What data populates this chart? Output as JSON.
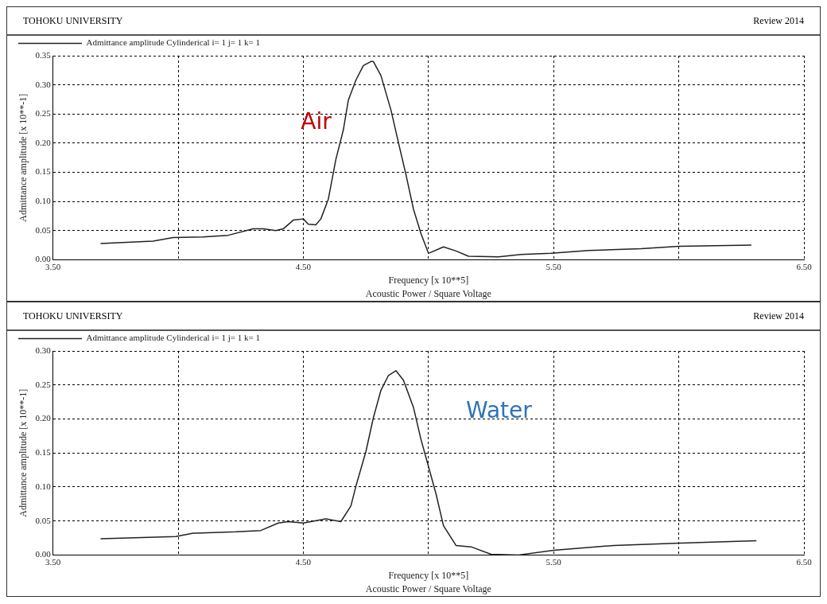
{
  "chart_data": [
    {
      "type": "line",
      "title": "TOHOKU UNIVERSITY",
      "subtitle": "Review 2014",
      "xlabel": "Frequency [x 10**5]",
      "ylabel": "Admittance amplitude [x 10**-1]",
      "annotations": [
        "Acoustic Power / Square Voltage",
        "Air"
      ],
      "legend": "top left",
      "grid": true,
      "xlim": [
        3.5,
        6.5
      ],
      "xticks": [
        {
          "value": 3.5,
          "label": "3.50"
        },
        {
          "value": 4.0,
          "label": null
        },
        {
          "value": 4.5,
          "label": "4.50"
        },
        {
          "value": 5.0,
          "label": null
        },
        {
          "value": 5.5,
          "label": "5.50"
        },
        {
          "value": 6.0,
          "label": null
        },
        {
          "value": 6.5,
          "label": "6.50"
        }
      ],
      "ylim": [
        0,
        0.35
      ],
      "yticks": [
        {
          "value": 0,
          "label": "0.00"
        },
        {
          "value": 0.05,
          "label": "0.05"
        },
        {
          "value": 0.1,
          "label": "0.10"
        },
        {
          "value": 0.15,
          "label": "0.15"
        },
        {
          "value": 0.2,
          "label": "0.20"
        },
        {
          "value": 0.25,
          "label": "0.25"
        },
        {
          "value": 0.3,
          "label": "0.30"
        },
        {
          "value": 0.35,
          "label": "0.35"
        }
      ],
      "series": [
        {
          "name": "Admittance amplitude Cylinderical i= 1 j= 1 k= 1",
          "color": "#222222",
          "x": [
            3.69,
            3.9,
            3.98,
            4.1,
            4.2,
            4.3,
            4.34,
            4.39,
            4.42,
            4.46,
            4.5,
            4.52,
            4.55,
            4.57,
            4.6,
            4.63,
            4.66,
            4.68,
            4.71,
            4.74,
            4.77,
            4.78,
            4.81,
            4.85,
            4.88,
            4.91,
            4.94,
            4.97,
            5.0,
            5.06,
            5.11,
            5.16,
            5.28,
            5.37,
            5.49,
            5.64,
            5.85,
            6.0,
            6.29
          ],
          "values": [
            0.028,
            0.032,
            0.038,
            0.039,
            0.042,
            0.053,
            0.053,
            0.05,
            0.053,
            0.068,
            0.07,
            0.061,
            0.06,
            0.07,
            0.104,
            0.172,
            0.223,
            0.274,
            0.308,
            0.333,
            0.34,
            0.34,
            0.316,
            0.257,
            0.201,
            0.146,
            0.087,
            0.045,
            0.011,
            0.022,
            0.015,
            0.006,
            0.005,
            0.009,
            0.011,
            0.016,
            0.019,
            0.023,
            0.025
          ]
        }
      ]
    },
    {
      "type": "line",
      "title": "TOHOKU UNIVERSITY",
      "subtitle": "Review 2014",
      "xlabel": "Frequency [x 10**5]",
      "ylabel": "Admittance amplitude [x 10**-1]",
      "annotations": [
        "Acoustic Power / Square Voltage",
        "Water"
      ],
      "legend": "top left",
      "grid": true,
      "xlim": [
        3.5,
        6.5
      ],
      "xticks": [
        {
          "value": 3.5,
          "label": "3.50"
        },
        {
          "value": 4.0,
          "label": null
        },
        {
          "value": 4.5,
          "label": "4.50"
        },
        {
          "value": 5.0,
          "label": null
        },
        {
          "value": 5.5,
          "label": "5.50"
        },
        {
          "value": 6.0,
          "label": null
        },
        {
          "value": 6.5,
          "label": "6.50"
        }
      ],
      "ylim": [
        0,
        0.3
      ],
      "yticks": [
        {
          "value": 0,
          "label": "0.00"
        },
        {
          "value": 0.05,
          "label": "0.05"
        },
        {
          "value": 0.1,
          "label": "0.10"
        },
        {
          "value": 0.15,
          "label": "0.15"
        },
        {
          "value": 0.2,
          "label": "0.20"
        },
        {
          "value": 0.25,
          "label": "0.25"
        },
        {
          "value": 0.3,
          "label": "0.30"
        }
      ],
      "series": [
        {
          "name": "Admittance amplitude Cylinderical i= 1 j= 1 k= 1",
          "color": "#222222",
          "x": [
            3.69,
            3.99,
            4.06,
            4.23,
            4.33,
            4.4,
            4.44,
            4.5,
            4.59,
            4.65,
            4.69,
            4.71,
            4.75,
            4.78,
            4.81,
            4.84,
            4.87,
            4.9,
            4.94,
            4.97,
            5.0,
            5.03,
            5.06,
            5.11,
            5.17,
            5.25,
            5.36,
            5.5,
            5.74,
            5.98,
            6.31
          ],
          "values": [
            0.024,
            0.027,
            0.032,
            0.034,
            0.036,
            0.047,
            0.049,
            0.047,
            0.053,
            0.049,
            0.072,
            0.101,
            0.152,
            0.202,
            0.242,
            0.264,
            0.271,
            0.257,
            0.217,
            0.17,
            0.13,
            0.09,
            0.043,
            0.014,
            0.012,
            0.001,
            0.0,
            0.007,
            0.014,
            0.017,
            0.021
          ]
        }
      ]
    }
  ]
}
